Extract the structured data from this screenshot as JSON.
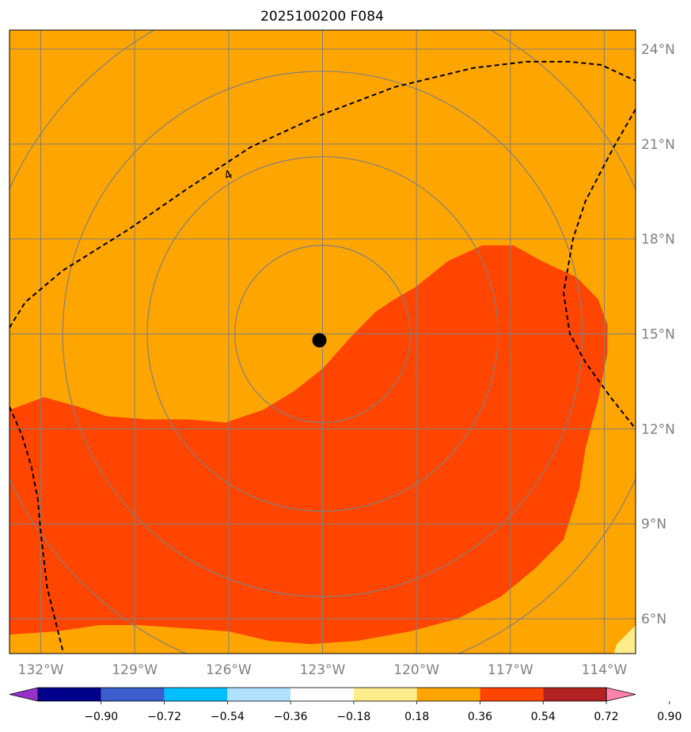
{
  "chart_data": {
    "type": "filled-contour map",
    "title": "2025100200 F084",
    "xlim": [
      -133.0,
      -113.0
    ],
    "ylim": [
      4.9,
      24.6
    ],
    "x_ticks": [
      {
        "value": -132,
        "label": "132°W"
      },
      {
        "value": -129,
        "label": "129°W"
      },
      {
        "value": -126,
        "label": "126°W"
      },
      {
        "value": -123,
        "label": "123°W"
      },
      {
        "value": -120,
        "label": "120°W"
      },
      {
        "value": -117,
        "label": "117°W"
      },
      {
        "value": -114,
        "label": "114°W"
      }
    ],
    "y_ticks": [
      {
        "value": 6,
        "label": "6°N"
      },
      {
        "value": 9,
        "label": "9°N"
      },
      {
        "value": 12,
        "label": "12°N"
      },
      {
        "value": 15,
        "label": "15°N"
      },
      {
        "value": 18,
        "label": "18°N"
      },
      {
        "value": 21,
        "label": "21°N"
      },
      {
        "value": 24,
        "label": "24°N"
      }
    ],
    "colorbar": {
      "levels": [
        -0.9,
        -0.72,
        -0.54,
        -0.36,
        -0.18,
        0.18,
        0.36,
        0.54,
        0.72,
        0.9
      ],
      "labels": [
        "−0.90",
        "−0.72",
        "−0.54",
        "−0.36",
        "−0.18",
        "0.18",
        "0.36",
        "0.54",
        "0.72",
        "0.90"
      ],
      "colors": [
        "#9932CC",
        "#00008B",
        "#3A5FCD",
        "#00BFFF",
        "#B0E2FF",
        "#FFFFFF",
        "#FFEC8B",
        "#FFA500",
        "#FF4500",
        "#B22222",
        "#FF82AB"
      ]
    },
    "background_fill": "#FFA500",
    "regions": [
      {
        "name": "band-0.72",
        "color": "#FF4500",
        "points": [
          [
            -133.0,
            12.6
          ],
          [
            -131.9,
            13.0
          ],
          [
            -130.8,
            12.7
          ],
          [
            -129.9,
            12.4
          ],
          [
            -128.6,
            12.3
          ],
          [
            -127.3,
            12.3
          ],
          [
            -126.1,
            12.2
          ],
          [
            -124.9,
            12.6
          ],
          [
            -123.9,
            13.2
          ],
          [
            -123.0,
            13.9
          ],
          [
            -122.1,
            14.9
          ],
          [
            -121.3,
            15.7
          ],
          [
            -120.7,
            16.1
          ],
          [
            -120.0,
            16.5
          ],
          [
            -119.0,
            17.3
          ],
          [
            -117.9,
            17.8
          ],
          [
            -116.9,
            17.8
          ],
          [
            -116.0,
            17.3
          ],
          [
            -114.9,
            16.8
          ],
          [
            -114.2,
            16.1
          ],
          [
            -113.9,
            15.3
          ],
          [
            -113.9,
            14.4
          ],
          [
            -114.2,
            12.9
          ],
          [
            -114.6,
            11.4
          ],
          [
            -114.8,
            10.1
          ],
          [
            -115.3,
            8.5
          ],
          [
            -116.2,
            7.6
          ],
          [
            -117.3,
            6.7
          ],
          [
            -118.7,
            6.0
          ],
          [
            -120.2,
            5.6
          ],
          [
            -121.9,
            5.3
          ],
          [
            -123.4,
            5.2
          ],
          [
            -124.7,
            5.3
          ],
          [
            -126.0,
            5.6
          ],
          [
            -127.4,
            5.7
          ],
          [
            -128.9,
            5.8
          ],
          [
            -130.1,
            5.8
          ],
          [
            -131.5,
            5.6
          ],
          [
            -133.0,
            5.5
          ]
        ]
      },
      {
        "name": "band-0.36-corner",
        "color": "#FFEC8B",
        "points": [
          [
            -113.0,
            5.8
          ],
          [
            -113.6,
            5.2
          ],
          [
            -113.7,
            4.9
          ],
          [
            -113.0,
            4.9
          ]
        ]
      }
    ],
    "dashed_contours": [
      {
        "label": "4",
        "label_at": [
          -126.0,
          20.0
        ],
        "points": [
          [
            -133.0,
            15.2
          ],
          [
            -132.5,
            16.0
          ],
          [
            -131.3,
            17.0
          ],
          [
            -129.2,
            18.3
          ],
          [
            -127.3,
            19.6
          ],
          [
            -125.3,
            20.9
          ],
          [
            -123.1,
            21.9
          ],
          [
            -120.7,
            22.8
          ],
          [
            -118.2,
            23.4
          ],
          [
            -116.5,
            23.6
          ],
          [
            -115.1,
            23.6
          ],
          [
            -114.1,
            23.5
          ],
          [
            -113.0,
            23.0
          ]
        ]
      },
      {
        "label": "",
        "label_at": null,
        "points": [
          [
            -113.0,
            22.1
          ],
          [
            -113.7,
            20.9
          ],
          [
            -114.6,
            19.2
          ],
          [
            -115.0,
            18.0
          ],
          [
            -115.3,
            16.3
          ],
          [
            -115.1,
            15.0
          ],
          [
            -114.6,
            14.1
          ],
          [
            -113.8,
            13.0
          ],
          [
            -113.0,
            12.0
          ]
        ]
      },
      {
        "label": "",
        "label_at": null,
        "points": [
          [
            -133.0,
            12.7
          ],
          [
            -132.6,
            11.8
          ],
          [
            -132.3,
            10.8
          ],
          [
            -132.1,
            9.8
          ],
          [
            -132.0,
            8.7
          ],
          [
            -131.8,
            7.0
          ],
          [
            -131.5,
            5.8
          ],
          [
            -131.3,
            5.0
          ]
        ]
      }
    ],
    "range_rings": {
      "center": [
        -123.0,
        15.0
      ],
      "radii_deg": [
        2.8,
        5.6,
        8.3,
        11.0
      ]
    },
    "storm_marker": {
      "lon": -123.1,
      "lat": 14.8,
      "symbol": "filled-circle",
      "color": "#000000"
    }
  }
}
